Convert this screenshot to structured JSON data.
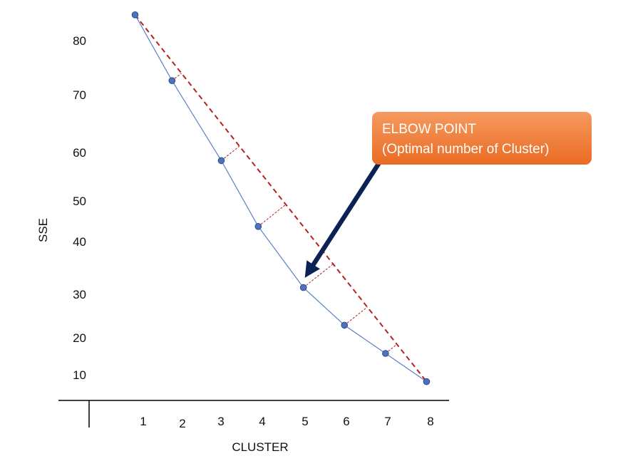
{
  "chart_data": {
    "type": "line",
    "xlabel": "CLUSTER",
    "ylabel": "SSE",
    "x_ticks": [
      "1",
      "2",
      "3",
      "4",
      "5",
      "6",
      "7",
      "8"
    ],
    "y_ticks": [
      "80",
      "70",
      "60",
      "50",
      "40",
      "30",
      "20",
      "10"
    ],
    "grid": false,
    "legend": "none",
    "series": [
      {
        "points": [
          {
            "x": 0.8,
            "y": 82
          },
          {
            "x": 1.7,
            "y": 68
          },
          {
            "x": 2.9,
            "y": 51
          },
          {
            "x": 3.8,
            "y": 37
          },
          {
            "x": 4.9,
            "y": 24
          },
          {
            "x": 5.9,
            "y": 16
          },
          {
            "x": 6.9,
            "y": 10
          },
          {
            "x": 7.9,
            "y": 4
          }
        ]
      }
    ],
    "reference_line": {
      "from": {
        "x": 0.8,
        "y": 82
      },
      "to": {
        "x": 7.9,
        "y": 4
      }
    },
    "annotation": {
      "line1": "ELBOW POINT",
      "line2": "(Optimal number of Cluster)",
      "points_to": {
        "x": 4.9,
        "y": 24
      }
    },
    "colors": {
      "curve": "#5b7fc7",
      "marker": "#4f72c0",
      "marker_edge": "#2c4a8a",
      "reference": "#b42222",
      "arrow": "#0d2254",
      "callout": "#ee7a35"
    }
  }
}
